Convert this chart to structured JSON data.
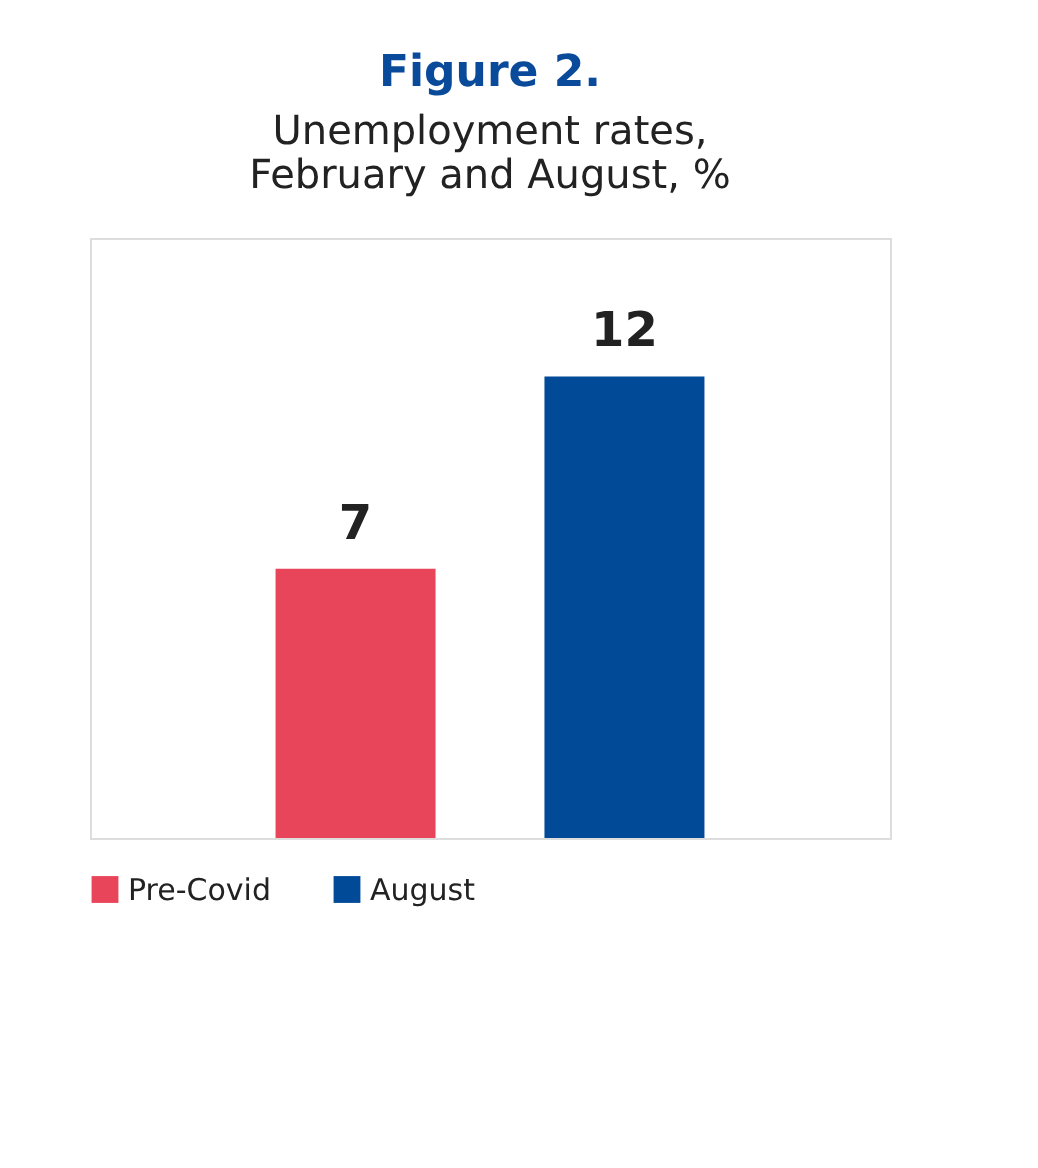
{
  "chart_data": {
    "type": "bar",
    "title": "Figure 2.",
    "subtitle": "Unemployment rates,\nFebruary and August, %",
    "categories": [
      null
    ],
    "series": [
      {
        "name": "Pre-Covid",
        "color": "#e8455a",
        "values": [
          7
        ]
      },
      {
        "name": "August",
        "color": "#004a98",
        "values": [
          12
        ]
      }
    ],
    "data_labels": true,
    "legend": "bottom",
    "tick_labels": false
  }
}
